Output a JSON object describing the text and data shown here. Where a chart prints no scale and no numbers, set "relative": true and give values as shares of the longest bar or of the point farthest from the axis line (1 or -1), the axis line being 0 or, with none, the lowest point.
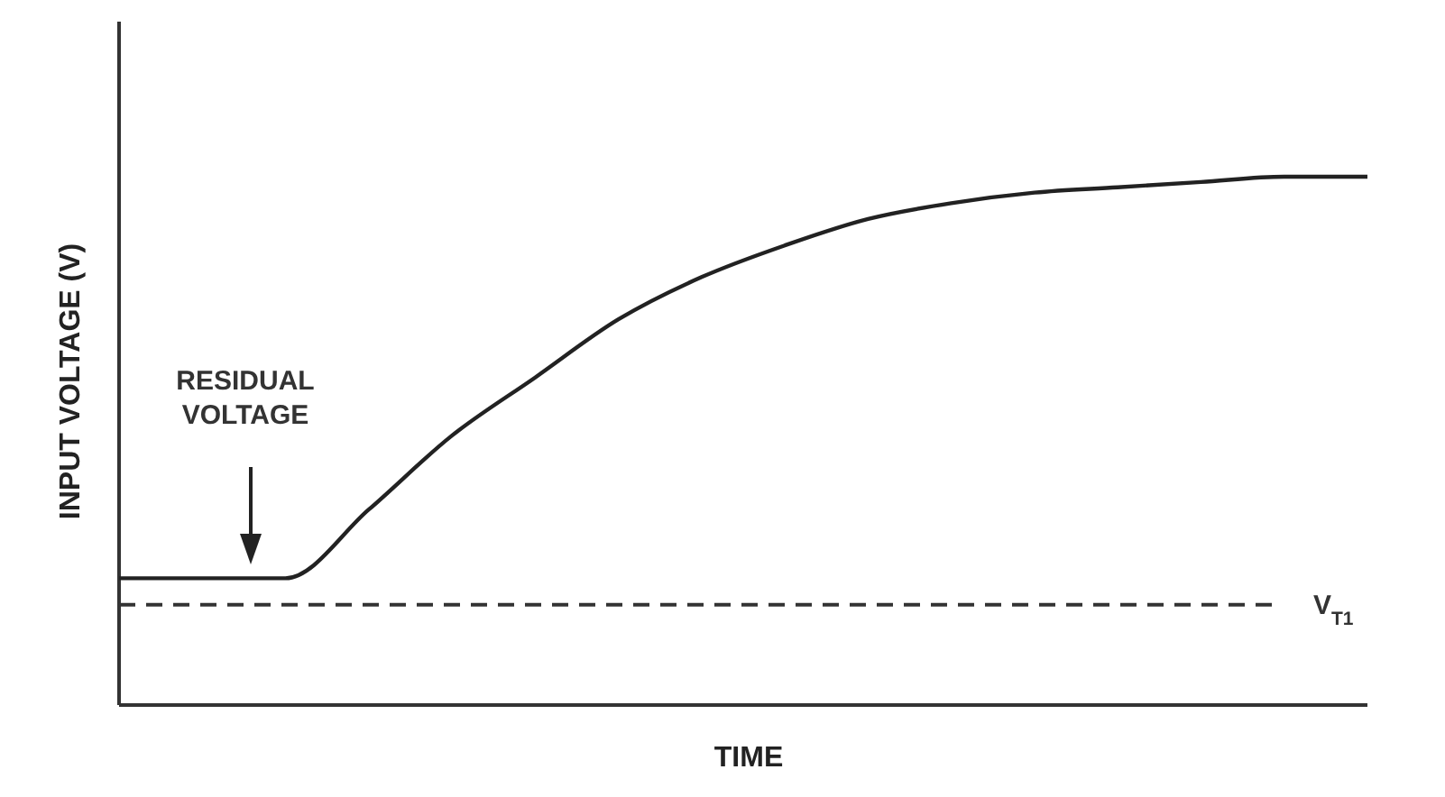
{
  "chart_data": {
    "type": "line",
    "relative": true,
    "xlabel": "TIME",
    "ylabel": "INPUT VOLTAGE (V)",
    "categories": [
      null,
      null,
      null,
      null,
      null,
      null,
      null,
      null,
      null,
      null,
      null,
      null,
      null,
      null,
      null,
      null
    ],
    "series": [
      {
        "color": "#222222",
        "values": [
          0.24,
          0.24,
          0.24,
          0.37,
          0.51,
          0.62,
          0.73,
          0.81,
          0.87,
          0.92,
          0.95,
          0.97,
          0.98,
          0.99,
          1,
          1
        ]
      }
    ],
    "ref_lines": [
      {
        "axis": "y",
        "value": 0.19,
        "label": "V$_{T1}$",
        "color": "#333333",
        "line_style": "dashed"
      }
    ],
    "annotations": [
      "RESIDUAL VOLTAGE"
    ]
  }
}
